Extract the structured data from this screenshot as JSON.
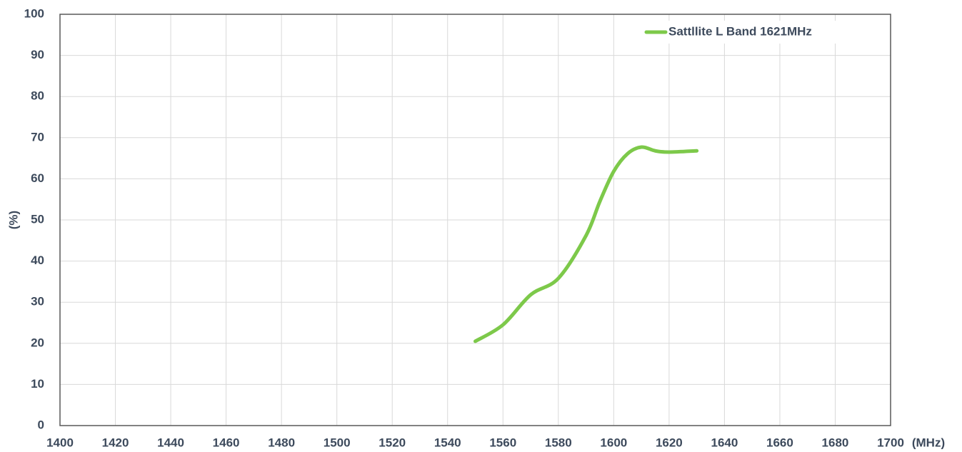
{
  "chart_data": {
    "type": "line",
    "x_label": "(MHz)",
    "y_label": "(%)",
    "x": [
      1550,
      1560,
      1570,
      1580,
      1590,
      1595,
      1600,
      1605,
      1610,
      1615,
      1620,
      1630
    ],
    "series": [
      {
        "name": "Sattllite L Band 1621MHz",
        "color": "#7dc94a",
        "values": [
          20.5,
          24.5,
          31.8,
          35.8,
          46.2,
          54.5,
          61.8,
          66.1,
          67.7,
          66.8,
          66.5,
          66.8
        ]
      }
    ],
    "xlim": [
      1400,
      1700
    ],
    "xticks": [
      1400,
      1420,
      1440,
      1460,
      1480,
      1500,
      1520,
      1540,
      1560,
      1580,
      1600,
      1620,
      1640,
      1660,
      1680,
      1700
    ],
    "ylim": [
      0,
      100
    ],
    "yticks": [
      0,
      10,
      20,
      30,
      40,
      50,
      60,
      70,
      80,
      90,
      100
    ],
    "grid": true,
    "legend": "upper right"
  }
}
